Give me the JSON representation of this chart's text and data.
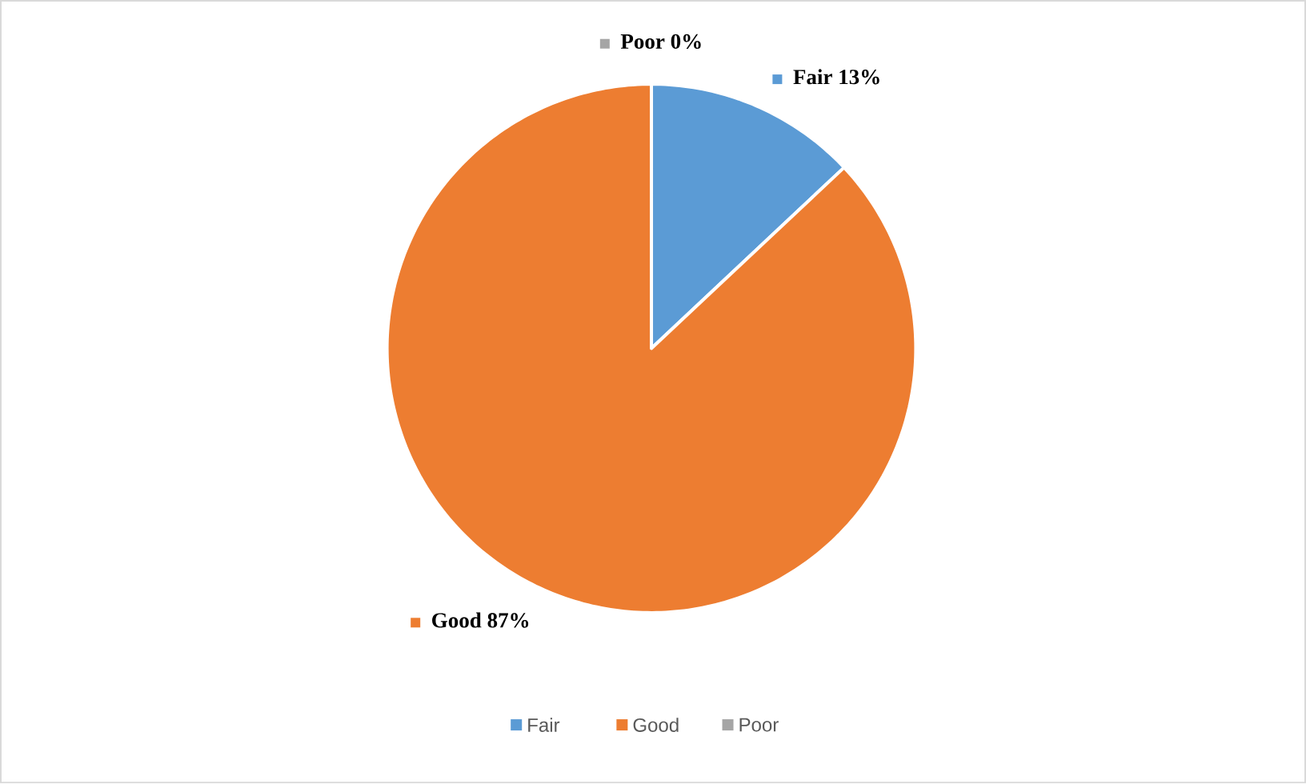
{
  "chart_data": {
    "type": "pie",
    "categories": [
      "Fair",
      "Good",
      "Poor"
    ],
    "values": [
      13,
      87,
      0
    ],
    "colors": [
      "#5b9bd5",
      "#ed7d31",
      "#a5a5a5"
    ],
    "value_labels": [
      "13%",
      "87%",
      "0%"
    ],
    "legend": "bottom"
  }
}
